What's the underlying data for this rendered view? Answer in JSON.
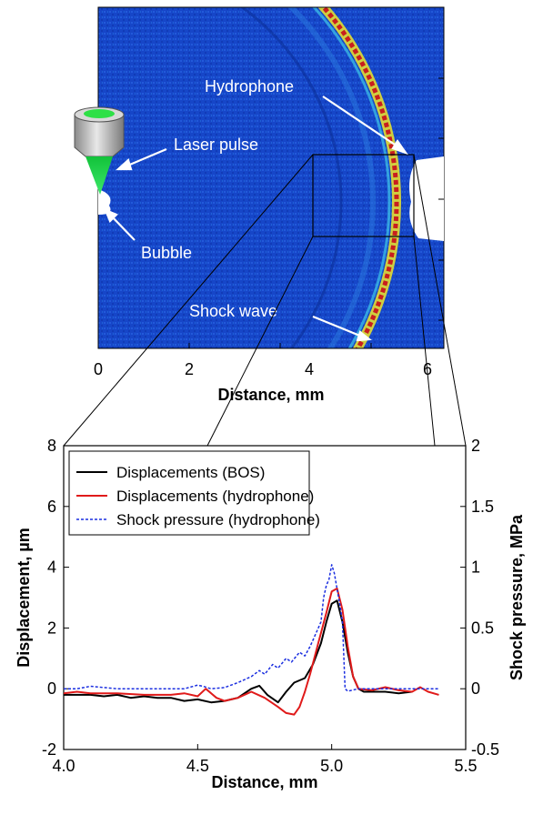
{
  "image_panel": {
    "xlabel": "Distance, mm",
    "x_ticks": [
      "0",
      "2",
      "4",
      "6"
    ],
    "annotations": {
      "hydrophone": "Hydrophone",
      "laser_pulse": "Laser pulse",
      "bubble": "Bubble",
      "shock_wave": "Shock wave"
    },
    "colors": {
      "background": "#1646c8",
      "wave_red": "#c81e1e",
      "wave_yellow": "#f0e628",
      "laser_green": "#22d04a"
    }
  },
  "chart_data": {
    "type": "line",
    "title": "",
    "xlabel": "Distance, mm",
    "ylabel": "Displacement, µm",
    "y2label": "Shock pressure, MPa",
    "xlim": [
      4.0,
      5.5
    ],
    "ylim": [
      -2,
      8
    ],
    "y2lim": [
      -0.5,
      2
    ],
    "x_tick_labels": [
      "4.0",
      "4.5",
      "5.0",
      "5.5"
    ],
    "y_tick_labels": [
      "-2",
      "0",
      "2",
      "4",
      "6",
      "8"
    ],
    "y2_tick_labels": [
      "-0.5",
      "0",
      "0.5",
      "1",
      "1.5",
      "2"
    ],
    "legend_position": "top-left",
    "series": [
      {
        "name": "Displacements (BOS)",
        "color": "#000000",
        "axis": "left",
        "x": [
          4.0,
          4.05,
          4.1,
          4.15,
          4.2,
          4.25,
          4.3,
          4.35,
          4.4,
          4.45,
          4.5,
          4.55,
          4.6,
          4.65,
          4.7,
          4.73,
          4.76,
          4.8,
          4.83,
          4.86,
          4.9,
          4.93,
          4.96,
          4.98,
          5.0,
          5.02,
          5.04,
          5.06,
          5.08,
          5.1,
          5.12,
          5.15,
          5.2,
          5.25,
          5.3
        ],
        "y": [
          -0.2,
          -0.2,
          -0.2,
          -0.25,
          -0.2,
          -0.3,
          -0.25,
          -0.3,
          -0.3,
          -0.4,
          -0.35,
          -0.45,
          -0.4,
          -0.3,
          0.0,
          0.1,
          -0.2,
          -0.45,
          -0.1,
          0.2,
          0.35,
          0.8,
          1.5,
          2.2,
          2.8,
          2.9,
          2.2,
          1.2,
          0.4,
          0.0,
          -0.1,
          -0.1,
          -0.1,
          -0.15,
          -0.1
        ]
      },
      {
        "name": "Displacements (hydrophone)",
        "color": "#e01a1a",
        "axis": "left",
        "x": [
          4.0,
          4.05,
          4.1,
          4.2,
          4.3,
          4.4,
          4.45,
          4.5,
          4.53,
          4.57,
          4.6,
          4.65,
          4.7,
          4.75,
          4.8,
          4.83,
          4.86,
          4.88,
          4.9,
          4.92,
          4.95,
          4.98,
          5.0,
          5.02,
          5.04,
          5.06,
          5.08,
          5.1,
          5.15,
          5.2,
          5.25,
          5.3,
          5.33,
          5.36,
          5.4
        ],
        "y": [
          -0.15,
          -0.1,
          -0.15,
          -0.15,
          -0.2,
          -0.2,
          -0.15,
          -0.25,
          0.0,
          -0.3,
          -0.4,
          -0.3,
          -0.1,
          -0.3,
          -0.6,
          -0.8,
          -0.85,
          -0.6,
          -0.1,
          0.5,
          1.5,
          2.5,
          3.2,
          3.3,
          2.6,
          1.4,
          0.4,
          0.0,
          -0.05,
          0.05,
          -0.05,
          -0.1,
          0.05,
          -0.1,
          -0.2
        ]
      },
      {
        "name": "Shock pressure (hydrophone)",
        "color": "#1a2ee0",
        "axis": "right",
        "dashed": true,
        "x": [
          4.0,
          4.05,
          4.1,
          4.2,
          4.3,
          4.4,
          4.45,
          4.5,
          4.52,
          4.55,
          4.6,
          4.65,
          4.7,
          4.73,
          4.75,
          4.78,
          4.8,
          4.83,
          4.85,
          4.88,
          4.9,
          4.92,
          4.94,
          4.96,
          4.97,
          4.98,
          4.99,
          5.0,
          5.01,
          5.02,
          5.03,
          5.04,
          5.05,
          5.06,
          5.1,
          5.2,
          5.3,
          5.4
        ],
        "y": [
          0.0,
          0.0,
          0.02,
          0.0,
          0.0,
          0.0,
          0.0,
          0.03,
          0.02,
          0.0,
          0.01,
          0.05,
          0.1,
          0.15,
          0.12,
          0.2,
          0.17,
          0.25,
          0.22,
          0.3,
          0.27,
          0.35,
          0.45,
          0.55,
          0.75,
          0.85,
          0.9,
          1.02,
          0.95,
          0.82,
          0.7,
          0.55,
          0.0,
          -0.02,
          0.0,
          0.0,
          0.0,
          0.0
        ]
      }
    ]
  }
}
